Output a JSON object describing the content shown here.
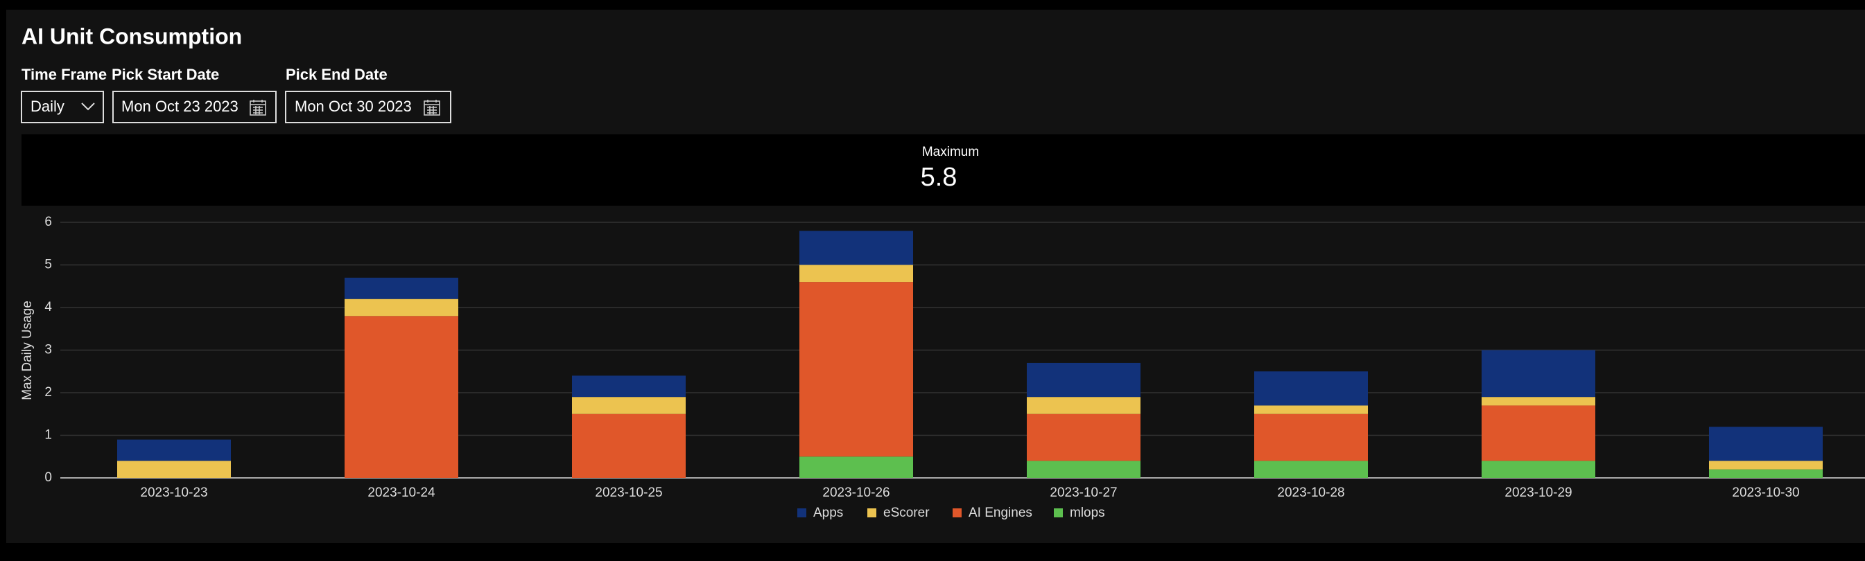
{
  "header": {
    "title": "AI Unit Consumption"
  },
  "controls": {
    "time_frame": {
      "label": "Time Frame",
      "value": "Daily"
    },
    "start_date": {
      "label": "Pick Start Date",
      "value": "Mon Oct 23 2023"
    },
    "end_date": {
      "label": "Pick End Date",
      "value": "Mon Oct 30 2023"
    }
  },
  "summary": {
    "label": "Maximum",
    "value": 5.8
  },
  "chart_data": {
    "type": "bar",
    "stacked": true,
    "y_label": "Max Daily Usage",
    "categories": [
      "2023-10-23",
      "2023-10-24",
      "2023-10-25",
      "2023-10-26",
      "2023-10-27",
      "2023-10-28",
      "2023-10-29",
      "2023-10-30"
    ],
    "series": [
      {
        "name": "Apps",
        "color": "#12327a",
        "values": [
          0.5,
          0.5,
          0.5,
          0.8,
          0.8,
          0.8,
          1.1,
          0.8
        ]
      },
      {
        "name": "eScorer",
        "color": "#ecc350",
        "values": [
          0.4,
          0.4,
          0.4,
          0.4,
          0.4,
          0.2,
          0.2,
          0.2
        ]
      },
      {
        "name": "AI Engines",
        "color": "#e0572a",
        "values": [
          0,
          3.8,
          1.5,
          4.1,
          1.1,
          1.1,
          1.3,
          0
        ]
      },
      {
        "name": "mlops",
        "color": "#5dbf4f",
        "values": [
          0,
          0,
          0,
          0.5,
          0.4,
          0.4,
          0.4,
          0.2
        ]
      }
    ],
    "ylim": [
      0,
      6
    ],
    "yticks": [
      0,
      1,
      2,
      3,
      4,
      5,
      6
    ],
    "grid": true,
    "legend": "bottom"
  }
}
